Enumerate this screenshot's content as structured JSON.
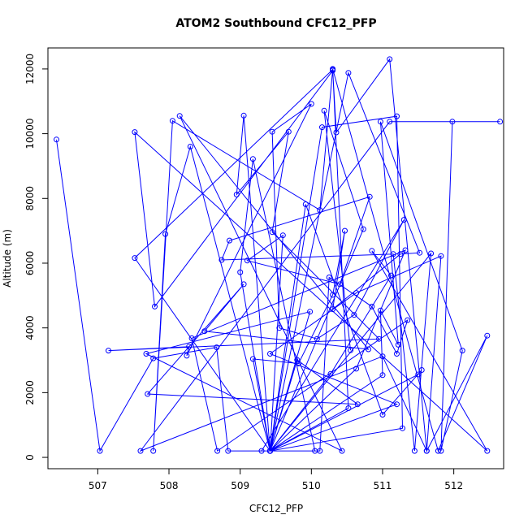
{
  "chart_data": {
    "type": "line",
    "title": "ATOM2 Southbound CFC12_PFP",
    "xlabel": "CFC12_PFP",
    "ylabel": "Altitude (m)",
    "xlim": [
      506.3,
      512.7
    ],
    "ylim": [
      -350,
      12650
    ],
    "x_ticks": [
      507,
      508,
      509,
      510,
      511,
      512
    ],
    "y_ticks": [
      0,
      2000,
      4000,
      6000,
      8000,
      10000,
      12000
    ],
    "series": [
      {
        "color": "#0000ff",
        "marker": "open-circle",
        "points": [
          [
            506.42,
            9820
          ],
          [
            507.03,
            200
          ],
          [
            507.78,
            3060
          ],
          [
            508.67,
            3400
          ],
          [
            508.83,
            200
          ],
          [
            509.42,
            200
          ],
          [
            511.2,
            1640
          ],
          [
            509.42,
            3200
          ],
          [
            510.63,
            5080
          ],
          [
            511.82,
            6220
          ],
          [
            511.62,
            200
          ],
          [
            511.0,
            3120
          ],
          [
            507.6,
            200
          ],
          [
            511.1,
            10370
          ],
          [
            512.65,
            10370
          ],
          [
            511.98,
            10370
          ],
          [
            511.82,
            200
          ],
          [
            512.12,
            3300
          ],
          [
            510.97,
            10370
          ],
          [
            511.22,
            3480
          ],
          [
            510.97,
            4540
          ],
          [
            511.0,
            2540
          ],
          [
            509.42,
            200
          ],
          [
            511.5,
            2560
          ],
          [
            511.55,
            2700
          ],
          [
            511.0,
            1320
          ],
          [
            509.92,
            7820
          ],
          [
            509.42,
            200
          ],
          [
            509.6,
            6860
          ],
          [
            509.1,
            6080
          ],
          [
            510.4,
            5350
          ],
          [
            510.82,
            8050
          ],
          [
            508.85,
            6700
          ],
          [
            508.74,
            6100
          ],
          [
            511.15,
            6280
          ],
          [
            511.45,
            200
          ],
          [
            511.68,
            6300
          ],
          [
            509.42,
            200
          ],
          [
            510.63,
            2740
          ],
          [
            511.32,
            6400
          ],
          [
            508.32,
            3680
          ],
          [
            508.68,
            200
          ],
          [
            511.35,
            4240
          ],
          [
            511.2,
            3200
          ],
          [
            510.85,
            4660
          ],
          [
            510.25,
            5560
          ],
          [
            510.12,
            200
          ],
          [
            509.3,
            200
          ],
          [
            511.3,
            7340
          ],
          [
            510.6,
            4400
          ],
          [
            510.08,
            3660
          ],
          [
            509.55,
            4000
          ],
          [
            509.45,
            10060
          ],
          [
            510.0,
            10920
          ],
          [
            508.25,
            3140
          ],
          [
            508.28,
            3420
          ],
          [
            507.15,
            3300
          ],
          [
            510.95,
            3660
          ],
          [
            509.45,
            6960
          ],
          [
            509.68,
            10060
          ],
          [
            508.95,
            8120
          ],
          [
            509.05,
            10560
          ],
          [
            509.42,
            200
          ],
          [
            510.05,
            200
          ],
          [
            509.18,
            9220
          ],
          [
            509.0,
            5720
          ],
          [
            509.42,
            200
          ],
          [
            510.15,
            10200
          ],
          [
            511.2,
            10540
          ],
          [
            511.28,
            900
          ],
          [
            509.42,
            200
          ],
          [
            508.3,
            9600
          ],
          [
            507.95,
            6900
          ],
          [
            507.78,
            200
          ],
          [
            508.05,
            10400
          ],
          [
            510.12,
            7640
          ],
          [
            510.3,
            11980
          ],
          [
            507.52,
            6160
          ],
          [
            509.42,
            200
          ],
          [
            510.52,
            1520
          ],
          [
            510.3,
            12000
          ],
          [
            511.78,
            200
          ],
          [
            512.47,
            3760
          ],
          [
            511.62,
            200
          ],
          [
            511.1,
            12300
          ],
          [
            510.35,
            10040
          ],
          [
            510.3,
            11950
          ],
          [
            507.8,
            4660
          ],
          [
            507.52,
            10050
          ],
          [
            512.47,
            200
          ],
          [
            510.85,
            6380
          ],
          [
            511.12,
            5620
          ],
          [
            510.27,
            2580
          ],
          [
            509.42,
            200
          ],
          [
            510.52,
            11880
          ],
          [
            511.52,
            6320
          ],
          [
            511.25,
            6280
          ],
          [
            510.3,
            4580
          ],
          [
            510.47,
            7000
          ],
          [
            510.3,
            5020
          ],
          [
            509.82,
            2900
          ],
          [
            509.18,
            3040
          ],
          [
            509.42,
            200
          ],
          [
            509.98,
            4500
          ],
          [
            507.68,
            3200
          ],
          [
            510.43,
            200
          ],
          [
            508.15,
            10550
          ],
          [
            510.8,
            3340
          ],
          [
            508.5,
            3900
          ],
          [
            509.05,
            5350
          ],
          [
            507.7,
            1960
          ],
          [
            510.65,
            1640
          ],
          [
            509.8,
            3010
          ],
          [
            509.42,
            200
          ],
          [
            510.73,
            7050
          ],
          [
            510.18,
            10710
          ],
          [
            510.55,
            3310
          ]
        ]
      }
    ]
  }
}
